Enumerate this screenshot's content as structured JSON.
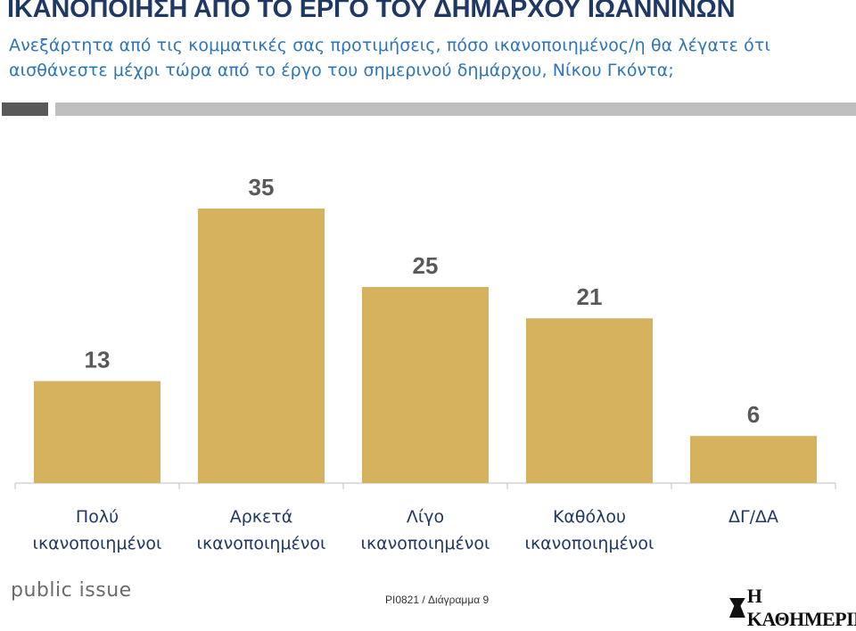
{
  "header": {
    "title": "ΙΚΑΝΟΠΟΙΗΣΗ ΑΠΟ ΤΟ ΕΡΓΟ ΤΟΥ ΔΗΜΑΡΧΟΥ ΙΩΑΝΝΙΝΩΝ",
    "subtitle": "Ανεξάρτητα από τις κομματικές σας προτιμήσεις, πόσο ικανοποιημένος/η θα λέγατε ότι αισθάνεστε μέχρι τώρα από το έργο του σημερινού δημάρχου, Νίκου Γκόντα;"
  },
  "footer": {
    "brand": "public issue",
    "code": "PI0821 / Διάγραμμα 9",
    "logo": "Η ΚΑΘΗΜΕΡΙΝΗ"
  },
  "colors": {
    "title": "#1f3864",
    "subtitle": "#2e75b6",
    "bar": "#d6b25e",
    "value_label": "#595959",
    "category_label": "#1f3864"
  },
  "chart_data": {
    "type": "bar",
    "categories": [
      [
        "Πολύ",
        "ικανοποιημένοι"
      ],
      [
        "Αρκετά",
        "ικανοποιημένοι"
      ],
      [
        "Λίγο",
        "ικανοποιημένοι"
      ],
      [
        "Καθόλου",
        "ικανοποιημένοι"
      ],
      [
        "ΔΓ/ΔΑ"
      ]
    ],
    "values": [
      13,
      35,
      25,
      21,
      6
    ],
    "ylim": [
      0,
      40
    ],
    "grid": false,
    "data_labels": true
  }
}
